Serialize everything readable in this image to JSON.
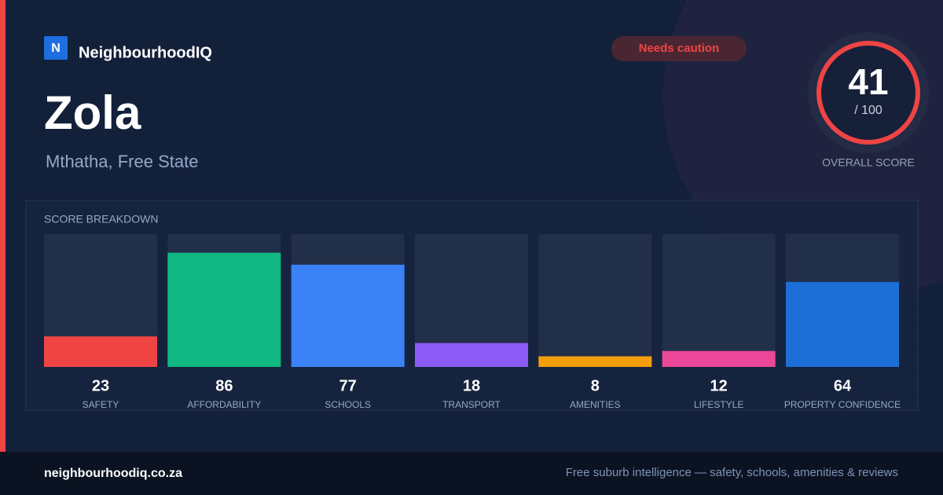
{
  "brand": {
    "logo": "N",
    "name": "NeighbourhoodIQ"
  },
  "badge": "Needs caution",
  "title": "Zola",
  "location": "Mthatha, Free State",
  "score": {
    "value": "41",
    "scale": "/ 100",
    "label": "OVERALL SCORE"
  },
  "chart_data": {
    "type": "bar",
    "title": "SCORE BREAKDOWN",
    "categories": [
      "SAFETY",
      "AFFORDABILITY",
      "SCHOOLS",
      "TRANSPORT",
      "AMENITIES",
      "LIFESTYLE",
      "PROPERTY CONFIDENCE"
    ],
    "values": [
      23,
      86,
      77,
      18,
      8,
      12,
      64
    ],
    "colors": [
      "#ef4444",
      "#10b981",
      "#3b82f6",
      "#8b5cf6",
      "#f59e0b",
      "#ec4899",
      "#1d6fd8"
    ],
    "ylim": [
      0,
      100
    ]
  },
  "footer": {
    "site": "neighbourhoodiq.co.za",
    "tagline": "Free suburb intelligence — safety, schools, amenities & reviews"
  }
}
